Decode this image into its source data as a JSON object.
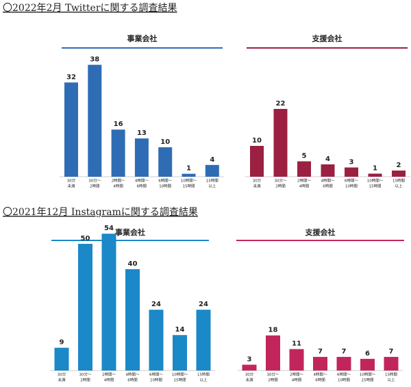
{
  "headings": [
    "〇2022年2月 Twitterに関する調査結果",
    "〇2021年12月 Instagramに関する調査結果"
  ],
  "chart_data": [
    {
      "type": "bar",
      "title": "事業会社",
      "color": "#2e6db4",
      "categories": [
        [
          "30分",
          "未満"
        ],
        [
          "30分～",
          "2時間"
        ],
        [
          "2時間～",
          "4時間"
        ],
        [
          "4時間～",
          "6時間"
        ],
        [
          "6時間～",
          "10時間"
        ],
        [
          "10時間～",
          "15時間"
        ],
        [
          "15時間",
          "以上"
        ]
      ],
      "values": [
        32,
        38,
        16,
        13,
        10,
        1,
        4
      ]
    },
    {
      "type": "bar",
      "title": "支援会社",
      "color": "#9b2042",
      "categories": [
        [
          "30分",
          "未満"
        ],
        [
          "30分～",
          "2時間"
        ],
        [
          "2時間～",
          "4時間"
        ],
        [
          "4時間～",
          "6時間"
        ],
        [
          "6時間～",
          "10時間"
        ],
        [
          "10時間～",
          "15時間"
        ],
        [
          "15時間",
          "以上"
        ]
      ],
      "values": [
        10,
        22,
        5,
        4,
        3,
        1,
        2
      ]
    },
    {
      "type": "bar",
      "title": "事業会社",
      "color": "#1b88c8",
      "categories": [
        [
          "30分",
          "未満"
        ],
        [
          "30分～",
          "2時間"
        ],
        [
          "2時間～",
          "4時間"
        ],
        [
          "4時間～",
          "6時間"
        ],
        [
          "6時間～",
          "10時間"
        ],
        [
          "10時間～",
          "15時間"
        ],
        [
          "15時間",
          "以上"
        ]
      ],
      "values": [
        9,
        50,
        54,
        40,
        24,
        14,
        24
      ]
    },
    {
      "type": "bar",
      "title": "支援会社",
      "color": "#c2255c",
      "categories": [
        [
          "30分",
          "未満"
        ],
        [
          "30分～",
          "2時間"
        ],
        [
          "2時間～",
          "4時間"
        ],
        [
          "4時間～",
          "6時間"
        ],
        [
          "6時間～",
          "10時間"
        ],
        [
          "10時間～",
          "15時間"
        ],
        [
          "15時間",
          "以上"
        ]
      ],
      "values": [
        3,
        18,
        11,
        7,
        7,
        6,
        7
      ]
    }
  ]
}
